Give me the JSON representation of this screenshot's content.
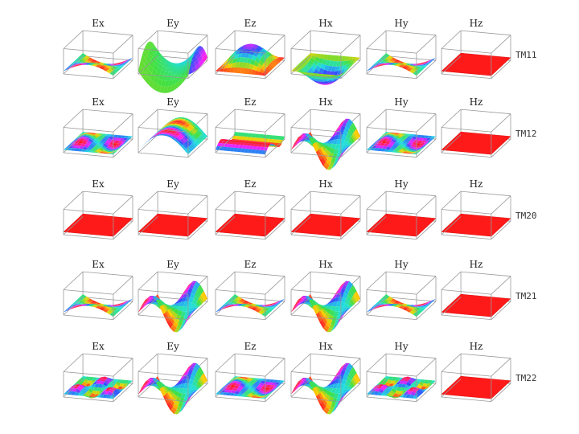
{
  "rows": [
    {
      "mode": "TM11",
      "labels": [
        "Ex",
        "Ey",
        "Ez",
        "Hx",
        "Hy",
        "Hz"
      ],
      "kinds": [
        "blobs2",
        "saddle",
        "dome",
        "bowl",
        "blobs2",
        "flat"
      ]
    },
    {
      "mode": "TM12",
      "labels": [
        "Ex",
        "Ey",
        "Ez",
        "Hx",
        "Hy",
        "Hz"
      ],
      "kinds": [
        "blobs4",
        "ridge",
        "stripes",
        "wave",
        "blobs4",
        "flat"
      ]
    },
    {
      "mode": "TM20",
      "labels": [
        "Ex",
        "Ey",
        "Ez",
        "Hx",
        "Hy",
        "Hz"
      ],
      "kinds": [
        "flat",
        "flat",
        "flat",
        "flat",
        "flat",
        "flat"
      ]
    },
    {
      "mode": "TM21",
      "labels": [
        "Ex",
        "Ey",
        "Ez",
        "Hx",
        "Hy",
        "Hz"
      ],
      "kinds": [
        "blobs2",
        "wave",
        "blobs2",
        "wave",
        "blobs2",
        "flat"
      ]
    },
    {
      "mode": "TM22",
      "labels": [
        "Ex",
        "Ey",
        "Ez",
        "Hx",
        "Hy",
        "Hz"
      ],
      "kinds": [
        "blobs6",
        "wave",
        "blobs4",
        "wave",
        "blobs6",
        "flat"
      ]
    }
  ],
  "colors": {
    "flat": "#ff1a1a",
    "palette": [
      "#ff2020",
      "#ffd000",
      "#40e040",
      "#20e0e0",
      "#3050ff",
      "#ff20ff"
    ],
    "box": "#999999"
  }
}
